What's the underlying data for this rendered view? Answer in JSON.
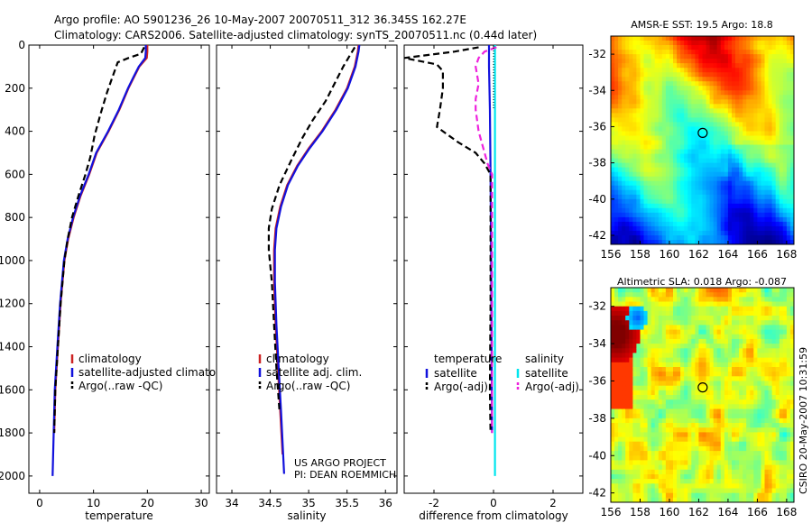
{
  "header": {
    "title_line1": "Argo profile: AO 5901236_26 10-May-2007 20070511_312 36.345S 162.27E",
    "title_line2": "Climatology: CARS2006. Satellite-adjusted climatology: synTS_20070511.nc (0.44d later)"
  },
  "side_label": "CSIRO 20-May-2007 10:31:59",
  "project_note": [
    "US ARGO PROJECT",
    "PI: DEAN ROEMMICH"
  ],
  "colors": {
    "climatology": "#cc2222",
    "satellite": "#1111dd",
    "argo": "#000000",
    "satellite_salinity_diff": "#00e5ee",
    "argo_salinity_diff": "#ee22dd"
  },
  "chart_data": [
    {
      "type": "line",
      "id": "temperature",
      "xlabel": "temperature",
      "ylabel": "",
      "xlim": [
        -2,
        31.5
      ],
      "ylim": [
        0,
        2080
      ],
      "y_reversed": true,
      "xticks": [
        0,
        10,
        20,
        30
      ],
      "yticks": [
        0,
        200,
        400,
        600,
        800,
        1000,
        1200,
        1400,
        1600,
        1800,
        2000
      ],
      "legend": {
        "placement": "lower-right",
        "entries": [
          "climatology",
          "satellite-adjusted climatology",
          "Argo(..raw -QC)"
        ]
      },
      "series": [
        {
          "name": "climatology",
          "style": "solid",
          "color": "#cc2222",
          "points": [
            [
              20,
              0
            ],
            [
              20,
              30
            ],
            [
              19.9,
              60
            ],
            [
              18.5,
              100
            ],
            [
              17.5,
              150
            ],
            [
              16.5,
              200
            ],
            [
              14.8,
              300
            ],
            [
              12.8,
              400
            ],
            [
              10.6,
              500
            ],
            [
              9.2,
              600
            ],
            [
              7.6,
              700
            ],
            [
              6.3,
              800
            ],
            [
              5.3,
              900
            ],
            [
              4.6,
              1000
            ],
            [
              3.9,
              1200
            ],
            [
              3.4,
              1400
            ],
            [
              2.9,
              1600
            ],
            [
              2.7,
              1800
            ]
          ]
        },
        {
          "name": "satellite-adjusted climatology",
          "style": "solid",
          "color": "#1111dd",
          "points": [
            [
              19.7,
              0
            ],
            [
              19.7,
              30
            ],
            [
              19.6,
              60
            ],
            [
              18.4,
              100
            ],
            [
              17.4,
              150
            ],
            [
              16.4,
              200
            ],
            [
              14.7,
              300
            ],
            [
              12.7,
              400
            ],
            [
              10.5,
              500
            ],
            [
              9.1,
              600
            ],
            [
              7.5,
              700
            ],
            [
              6.2,
              800
            ],
            [
              5.2,
              900
            ],
            [
              4.5,
              1000
            ],
            [
              3.8,
              1200
            ],
            [
              3.3,
              1400
            ],
            [
              2.8,
              1600
            ],
            [
              2.6,
              1800
            ],
            [
              2.4,
              2000
            ]
          ]
        },
        {
          "name": "Argo(..raw -QC)",
          "style": "dashed",
          "color": "#000000",
          "points": [
            [
              19.4,
              10
            ],
            [
              18.8,
              40
            ],
            [
              16.5,
              60
            ],
            [
              14.5,
              80
            ],
            [
              13.5,
              150
            ],
            [
              12.5,
              220
            ],
            [
              11.3,
              320
            ],
            [
              10.2,
              420
            ],
            [
              9.4,
              520
            ],
            [
              8.5,
              600
            ],
            [
              7.2,
              700
            ],
            [
              6.0,
              800
            ],
            [
              5.2,
              900
            ],
            [
              4.6,
              1000
            ],
            [
              3.9,
              1200
            ],
            [
              3.4,
              1400
            ],
            [
              2.9,
              1600
            ],
            [
              2.7,
              1800
            ]
          ]
        }
      ]
    },
    {
      "type": "line",
      "id": "salinity",
      "xlabel": "salinity",
      "ylabel": "",
      "xlim": [
        33.8,
        36.15
      ],
      "ylim": [
        0,
        2080
      ],
      "y_reversed": true,
      "xticks": [
        34,
        34.5,
        35,
        35.5,
        36
      ],
      "legend": {
        "placement": "lower-right",
        "entries": [
          "climatology",
          "satellite adj. clim.",
          "Argo(..raw -QC)"
        ]
      },
      "series": [
        {
          "name": "climatology",
          "style": "solid",
          "color": "#cc2222",
          "points": [
            [
              35.65,
              0
            ],
            [
              35.64,
              30
            ],
            [
              35.6,
              100
            ],
            [
              35.5,
              200
            ],
            [
              35.35,
              300
            ],
            [
              35.17,
              400
            ],
            [
              35.0,
              480
            ],
            [
              34.85,
              560
            ],
            [
              34.72,
              650
            ],
            [
              34.63,
              750
            ],
            [
              34.57,
              850
            ],
            [
              34.55,
              950
            ],
            [
              34.55,
              1100
            ],
            [
              34.57,
              1300
            ],
            [
              34.6,
              1500
            ],
            [
              34.63,
              1700
            ],
            [
              34.66,
              1900
            ]
          ]
        },
        {
          "name": "satellite adj. clim.",
          "style": "solid",
          "color": "#1111dd",
          "points": [
            [
              35.66,
              0
            ],
            [
              35.65,
              30
            ],
            [
              35.61,
              100
            ],
            [
              35.51,
              200
            ],
            [
              35.36,
              300
            ],
            [
              35.18,
              400
            ],
            [
              35.01,
              480
            ],
            [
              34.86,
              560
            ],
            [
              34.73,
              650
            ],
            [
              34.64,
              750
            ],
            [
              34.58,
              850
            ],
            [
              34.56,
              950
            ],
            [
              34.56,
              1100
            ],
            [
              34.58,
              1300
            ],
            [
              34.61,
              1500
            ],
            [
              34.64,
              1700
            ],
            [
              34.68,
              1990
            ]
          ]
        },
        {
          "name": "Argo(..raw -QC)",
          "style": "dashed",
          "color": "#000000",
          "points": [
            [
              35.6,
              10
            ],
            [
              35.55,
              40
            ],
            [
              35.5,
              70
            ],
            [
              35.45,
              100
            ],
            [
              35.35,
              170
            ],
            [
              35.22,
              260
            ],
            [
              35.05,
              350
            ],
            [
              34.92,
              430
            ],
            [
              34.78,
              530
            ],
            [
              34.62,
              650
            ],
            [
              34.52,
              760
            ],
            [
              34.48,
              850
            ],
            [
              34.48,
              950
            ],
            [
              34.52,
              1100
            ],
            [
              34.55,
              1300
            ],
            [
              34.58,
              1500
            ],
            [
              34.62,
              1700
            ]
          ]
        }
      ]
    },
    {
      "type": "line",
      "id": "difference",
      "xlabel": "difference from climatology",
      "ylabel": "",
      "xlim": [
        -3,
        3
      ],
      "ylim": [
        0,
        2080
      ],
      "y_reversed": true,
      "xticks": [
        -2,
        0,
        2
      ],
      "legend": {
        "placement": "lower-center",
        "groups": [
          {
            "title": "temperature",
            "entries": [
              "satellite",
              "Argo(-adj)"
            ]
          },
          {
            "title": "salinity",
            "entries": [
              "satellite",
              "Argo(-adj)"
            ]
          }
        ]
      },
      "series": [
        {
          "name": "temperature satellite",
          "style": "solid",
          "color": "#1111dd",
          "points": [
            [
              -0.15,
              0
            ],
            [
              -0.15,
              100
            ],
            [
              -0.12,
              300
            ],
            [
              -0.1,
              600
            ],
            [
              -0.08,
              1000
            ],
            [
              -0.06,
              1500
            ],
            [
              -0.05,
              1800
            ]
          ]
        },
        {
          "name": "temperature Argo(-adj)",
          "style": "dashed",
          "color": "#000000",
          "points": [
            [
              -0.5,
              10
            ],
            [
              -1.3,
              30
            ],
            [
              -3.0,
              60
            ],
            [
              -1.9,
              90
            ],
            [
              -1.7,
              120
            ],
            [
              -1.7,
              200
            ],
            [
              -1.8,
              300
            ],
            [
              -1.9,
              380
            ],
            [
              -1.2,
              450
            ],
            [
              -0.6,
              500
            ],
            [
              -0.3,
              550
            ],
            [
              -0.1,
              600
            ],
            [
              -0.1,
              800
            ],
            [
              -0.1,
              1200
            ],
            [
              -0.12,
              1600
            ],
            [
              -0.1,
              1800
            ]
          ]
        },
        {
          "name": "salinity satellite",
          "style": "solid",
          "color": "#00e5ee",
          "points": [
            [
              0.05,
              0
            ],
            [
              0.05,
              100
            ],
            [
              0.05,
              400
            ],
            [
              0.05,
              800
            ],
            [
              0.05,
              1200
            ],
            [
              0.05,
              1600
            ],
            [
              0.05,
              2000
            ]
          ]
        },
        {
          "name": "salinity Argo(-adj)",
          "style": "dashed",
          "color": "#ee22dd",
          "points": [
            [
              0.1,
              10
            ],
            [
              -0.3,
              30
            ],
            [
              -0.5,
              60
            ],
            [
              -0.6,
              100
            ],
            [
              -0.5,
              180
            ],
            [
              -0.6,
              250
            ],
            [
              -0.6,
              300
            ],
            [
              -0.5,
              400
            ],
            [
              -0.3,
              500
            ],
            [
              -0.2,
              550
            ],
            [
              -0.05,
              600
            ],
            [
              -0.05,
              900
            ],
            [
              -0.05,
              1200
            ],
            [
              -0.05,
              1600
            ],
            [
              -0.05,
              1800
            ]
          ]
        },
        {
          "name": "zero line",
          "style": "dotted",
          "color": "#000000",
          "points": [
            [
              0,
              0
            ],
            [
              0,
              300
            ]
          ]
        }
      ]
    },
    {
      "type": "heatmap",
      "id": "sst_map",
      "title": "AMSR-E SST: 19.5 Argo: 18.8",
      "xlim": [
        156,
        168.5
      ],
      "ylim": [
        -42.5,
        -31
      ],
      "xticks": [
        156,
        158,
        160,
        162,
        164,
        166,
        168
      ],
      "yticks": [
        -32,
        -34,
        -36,
        -38,
        -40,
        -42
      ],
      "marker": {
        "lon": 162.27,
        "lat": -36.345
      }
    },
    {
      "type": "heatmap",
      "id": "sla_map",
      "title": "Altimetric SLA: 0.018 Argo: -0.087",
      "xlim": [
        156,
        168.5
      ],
      "ylim": [
        -42.5,
        -31
      ],
      "xticks": [
        156,
        158,
        160,
        162,
        164,
        166,
        168
      ],
      "yticks": [
        -32,
        -34,
        -36,
        -38,
        -40,
        -42
      ],
      "marker": {
        "lon": 162.27,
        "lat": -36.345
      }
    }
  ]
}
